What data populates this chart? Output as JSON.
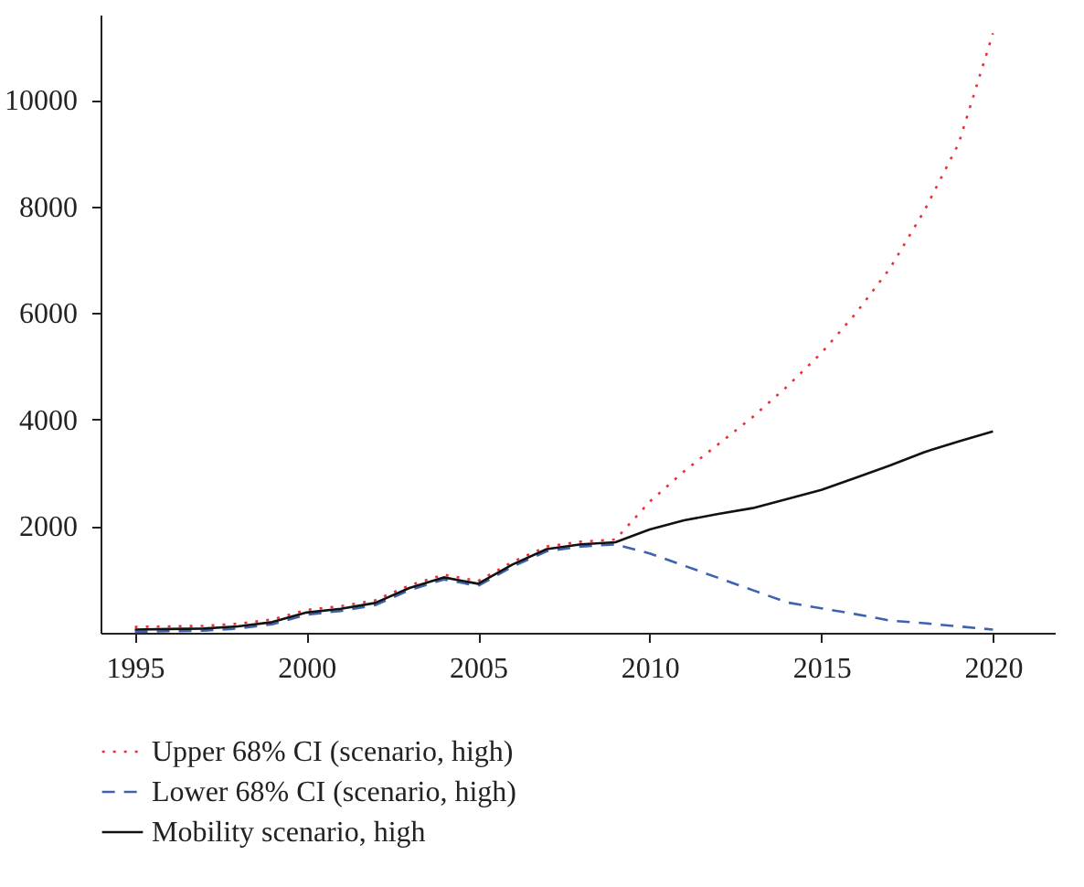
{
  "chart_data": {
    "type": "line",
    "x": [
      1995,
      1996,
      1997,
      1998,
      1999,
      2000,
      2001,
      2002,
      2003,
      2004,
      2005,
      2006,
      2007,
      2008,
      2009,
      2010,
      2011,
      2012,
      2013,
      2014,
      2015,
      2016,
      2017,
      2018,
      2019,
      2020
    ],
    "series": [
      {
        "name": "Upper 68% CI (scenario, high)",
        "color": "#e8303a",
        "line_style": "dotted",
        "values": [
          110,
          120,
          130,
          170,
          250,
          430,
          500,
          610,
          890,
          1090,
          970,
          1330,
          1620,
          1710,
          1750,
          2460,
          3030,
          3540,
          4050,
          4620,
          5250,
          5990,
          6840,
          7920,
          9180,
          11250
        ]
      },
      {
        "name": "Lower 68% CI (scenario, high)",
        "color": "#3c62b0",
        "line_style": "dashed",
        "values": [
          20,
          30,
          40,
          80,
          160,
          340,
          410,
          520,
          800,
          1000,
          880,
          1240,
          1530,
          1620,
          1660,
          1490,
          1260,
          1030,
          800,
          570,
          460,
          350,
          230,
          180,
          120,
          60
        ]
      },
      {
        "name": "Mobility scenario, high",
        "color": "#111111",
        "line_style": "solid",
        "values": [
          60,
          70,
          80,
          120,
          200,
          380,
          450,
          560,
          840,
          1040,
          920,
          1280,
          1570,
          1660,
          1700,
          1940,
          2110,
          2230,
          2340,
          2510,
          2680,
          2910,
          3140,
          3390,
          3590,
          3780
        ]
      }
    ],
    "xlim": [
      1994,
      2021.8
    ],
    "xticks": [
      1995,
      2000,
      2005,
      2010,
      2015,
      2020
    ],
    "ylim": [
      0,
      11600
    ],
    "yticks": [
      2000,
      4000,
      6000,
      8000,
      10000
    ],
    "grid": false,
    "legend": "bottom"
  }
}
